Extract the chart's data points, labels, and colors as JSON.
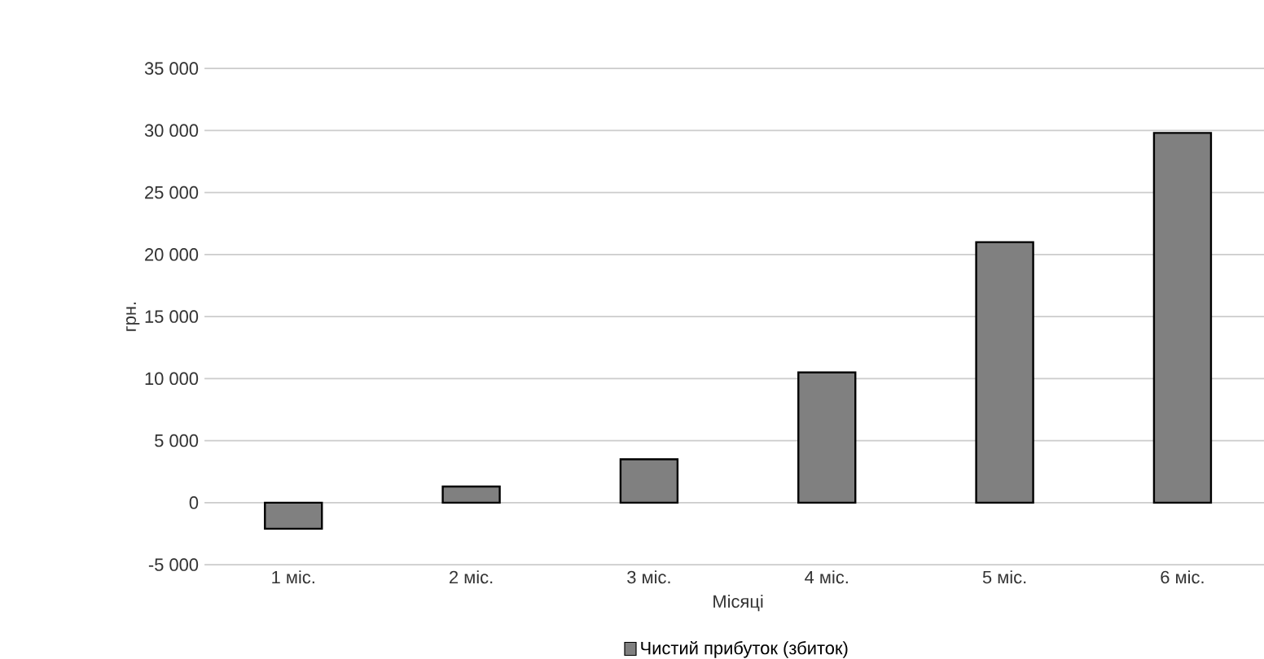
{
  "chart_data": {
    "type": "bar",
    "xlabel": "Місяці",
    "ylabel": "грн.",
    "categories": [
      "1 міс.",
      "2 міс.",
      "3 міс.",
      "4 міс.",
      "5 міс.",
      "6 міс."
    ],
    "series": [
      {
        "name": "Чистий прибуток (збиток)",
        "color": "#808080",
        "values": [
          -2100,
          1300,
          3500,
          10500,
          21000,
          29800
        ]
      }
    ],
    "ylim": [
      -5000,
      35000
    ],
    "yticks": [
      {
        "value": -5000,
        "label": "-5 000"
      },
      {
        "value": 0,
        "label": "0"
      },
      {
        "value": 5000,
        "label": "5 000"
      },
      {
        "value": 10000,
        "label": "10 000"
      },
      {
        "value": 15000,
        "label": "15 000"
      },
      {
        "value": 20000,
        "label": "20 000"
      },
      {
        "value": 25000,
        "label": "25 000"
      },
      {
        "value": 30000,
        "label": "30 000"
      },
      {
        "value": 35000,
        "label": "35 000"
      }
    ],
    "grid": "y",
    "legend": "bottom"
  }
}
